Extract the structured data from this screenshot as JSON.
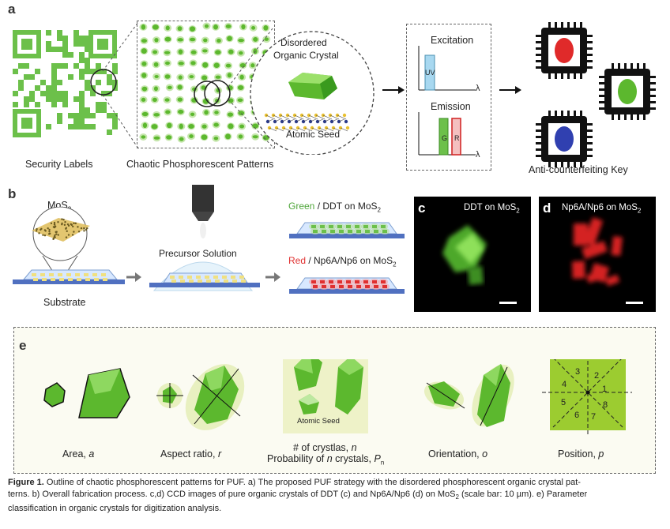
{
  "panel_a": {
    "letter": "a",
    "security_labels": "Security Labels",
    "chaotic_patterns": "Chaotic Phosphorescent Patterns",
    "disordered_l1": "Disordered",
    "disordered_l2": "Organic Crystal",
    "atomic_seed": "Atomic Seed",
    "excitation": "Excitation",
    "emission": "Emission",
    "uv": "UV",
    "g": "G",
    "r": "R",
    "lambda": "λ",
    "key": "Anti-counterfeiting Key"
  },
  "panel_b": {
    "letter": "b",
    "mos2": "MoS",
    "sub2": "2",
    "substrate": "Substrate",
    "precursor": "Precursor Solution",
    "green_word": "Green",
    "green_rest": " / DDT on MoS",
    "red_word": "Red",
    "red_rest": " / Np6A/Np6 on MoS"
  },
  "panel_c": {
    "letter": "c",
    "title": "DDT on MoS",
    "sub": "2"
  },
  "panel_d": {
    "letter": "d",
    "title": "Np6A/Np6 on MoS",
    "sub": "2"
  },
  "panel_e": {
    "letter": "e",
    "area": "Area, ",
    "area_v": "a",
    "aspect": "Aspect ratio, ",
    "aspect_v": "r",
    "seed": "Atomic Seed",
    "num": "# of crystlas, ",
    "num_v": "n",
    "prob": "Probability of ",
    "prob_n": "n",
    "prob_rest": " crystals, ",
    "prob_v": "P",
    "prob_sub": "n",
    "orient": "Orientation, ",
    "orient_v": "o",
    "pos": "Position, ",
    "pos_v": "p",
    "sectors": [
      "1",
      "2",
      "3",
      "4",
      "5",
      "6",
      "7",
      "8"
    ]
  },
  "caption": {
    "fig": "Figure 1.",
    "t1": "  Outline of chaotic phosphorescent patterns for PUF. a) The proposed PUF strategy with the disordered phosphorescent organic crystal pat-",
    "t2": "terns. b) Overall fabrication process. c,d) CCD images of pure organic crystals of DDT (c) and Np6A/Np6 (d) on MoS",
    "t2sub": "2",
    "t2b": " (scale bar: 10 µm). e) Parameter",
    "t3": "classification in organic crystals for digitization analysis."
  },
  "colors": {
    "green": "#6cc04a",
    "red": "#e03030",
    "uv": "#a8d8f0",
    "gold": "#e0c060"
  }
}
